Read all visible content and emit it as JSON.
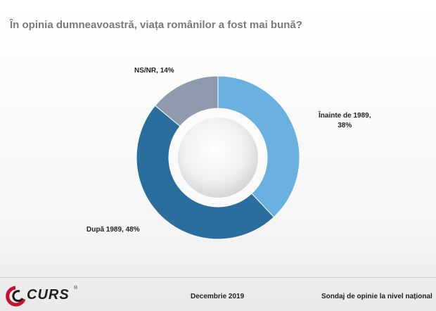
{
  "header": {
    "title": "În opinia dumneavoastră, viața românilor a fost mai bună?"
  },
  "chart_data": {
    "type": "pie",
    "variant": "donut",
    "slices": [
      {
        "label": "Înainte de 1989,",
        "value": 38,
        "value_text": "38%",
        "color": "#6ab0e0"
      },
      {
        "label": "După 1989,",
        "value": 48,
        "value_text": "48%",
        "color": "#2a6e9e"
      },
      {
        "label": "NS/NR,",
        "value": 14,
        "value_text": "14%",
        "color": "#8e9aae"
      }
    ]
  },
  "footer": {
    "logo_text": "CURS",
    "logo_mark": "®",
    "date": "Decembrie 2019",
    "source": "Sondaj de opinie la nivel național"
  }
}
